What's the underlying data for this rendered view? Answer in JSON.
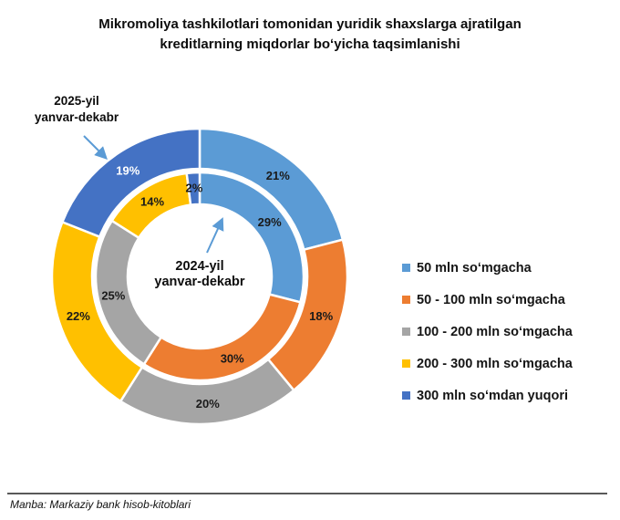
{
  "title": "Mikromoliya tashkilotlari tomonidan yuridik shaxslarga ajratilgan\nkreditlarning miqdorlar boʻyicha taqsimlanishi",
  "annotations": {
    "outer_ring_label": "2025-yil\nyanvar-dekabr",
    "inner_ring_label": "2024-yil\nyanvar-dekabr"
  },
  "legend": {
    "position": "right",
    "items": [
      {
        "label": "50 mln soʻmgacha",
        "color": "#5B9BD5"
      },
      {
        "label": "50 - 100 mln soʻmgacha",
        "color": "#ED7D31"
      },
      {
        "label": "100 - 200 mln soʻmgacha",
        "color": "#A5A5A5"
      },
      {
        "label": "200 - 300 mln soʻmgacha",
        "color": "#FFC000"
      },
      {
        "label": "300 mln soʻmdan yuqori",
        "color": "#4472C4"
      }
    ]
  },
  "chart_data": {
    "type": "pie",
    "subtype": "nested-donut",
    "title": "Mikromoliya tashkilotlari tomonidan yuridik shaxslarga ajratilgan kreditlarning miqdorlar boʻyicha taqsimlanishi",
    "categories": [
      "50 mln soʻmgacha",
      "50 - 100 mln soʻmgacha",
      "100 - 200 mln soʻmgacha",
      "200 - 300 mln soʻmgacha",
      "300 mln soʻmdan yuqori"
    ],
    "colors": [
      "#5B9BD5",
      "#ED7D31",
      "#A5A5A5",
      "#FFC000",
      "#4472C4"
    ],
    "value_suffix": "%",
    "series": [
      {
        "name": "2025-yil yanvar-dekabr",
        "ring": "outer",
        "values": [
          21,
          18,
          20,
          22,
          19
        ],
        "label_colors": [
          "#1a1a1a",
          "#1a1a1a",
          "#1a1a1a",
          "#1a1a1a",
          "#ffffff"
        ]
      },
      {
        "name": "2024-yil yanvar-dekabr",
        "ring": "inner",
        "values": [
          29,
          30,
          25,
          14,
          2
        ],
        "label_colors": [
          "#1a1a1a",
          "#1a1a1a",
          "#1a1a1a",
          "#1a1a1a",
          "#1a1a1a"
        ]
      }
    ],
    "annotation_arrow_color": "#5B9BD5",
    "legend_position": "right"
  },
  "footer": {
    "source": "Manba: Markaziy bank hisob-kitoblari"
  }
}
